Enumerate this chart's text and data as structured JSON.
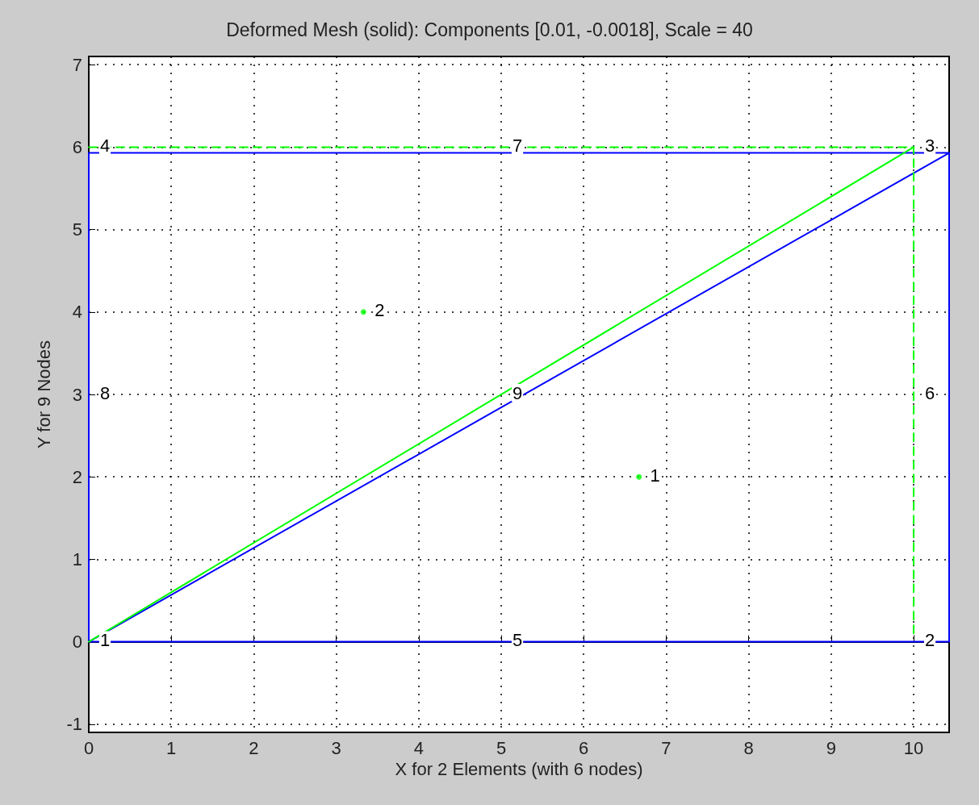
{
  "chart_data": {
    "type": "line",
    "title": "Deformed Mesh (solid): Components [0.01, -0.0018], Scale = 40",
    "xlabel": "X for 2 Elements (with 6 nodes)",
    "ylabel": "Y for 9 Nodes",
    "series": [
      {
        "color": "#0000ff",
        "x": [
          0,
          10.43,
          10.43,
          0,
          0,
          10.43
        ],
        "values": [
          0,
          0,
          5.93,
          5.93,
          0,
          5.93
        ],
        "line_style": "solid"
      },
      {
        "color": "#00ff00",
        "x": [
          0,
          10,
          10
        ],
        "values": [
          6,
          6,
          0.05
        ],
        "line_style": "dashed"
      },
      {
        "color": "#00ff00",
        "x": [
          0,
          10
        ],
        "values": [
          0,
          6
        ],
        "line_style": "solid"
      },
      {
        "type": "scatter",
        "color": "#00ff00",
        "x": [
          3.33,
          6.67
        ],
        "values": [
          4,
          2
        ],
        "marker": "circle"
      }
    ],
    "annotations": [
      {
        "text": "1",
        "x": 0,
        "y": 0
      },
      {
        "text": "2",
        "x": 10,
        "y": 0
      },
      {
        "text": "3",
        "x": 10,
        "y": 6
      },
      {
        "text": "4",
        "x": 0,
        "y": 6
      },
      {
        "text": "5",
        "x": 5,
        "y": 0
      },
      {
        "text": "6",
        "x": 10,
        "y": 3
      },
      {
        "text": "7",
        "x": 5,
        "y": 6
      },
      {
        "text": "8",
        "x": 0,
        "y": 3
      },
      {
        "text": "9",
        "x": 5,
        "y": 3
      },
      {
        "text": "2",
        "x": 3.33,
        "y": 4
      },
      {
        "text": "1",
        "x": 6.67,
        "y": 2
      }
    ],
    "xlim": [
      0,
      10.43
    ],
    "ylim": [
      -1.1,
      7.1
    ],
    "xticks": [
      0,
      1,
      2,
      3,
      4,
      5,
      6,
      7,
      8,
      9,
      10
    ],
    "yticks": [
      -1,
      0,
      1,
      2,
      3,
      4,
      5,
      6,
      7
    ],
    "grid": true,
    "marker": "none"
  }
}
